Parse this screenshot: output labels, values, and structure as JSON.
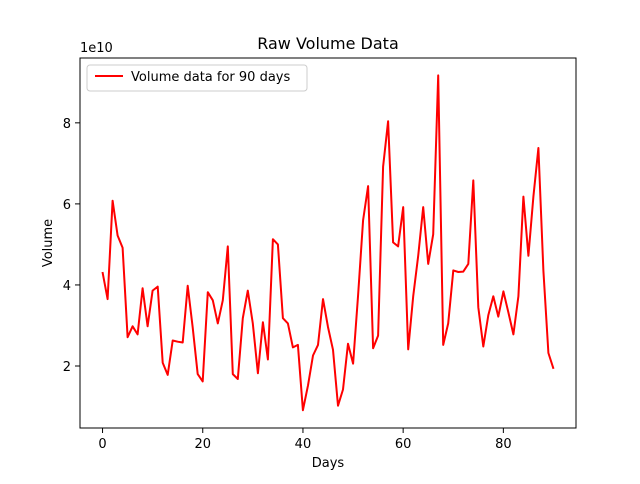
{
  "chart_data": {
    "type": "line",
    "title": "Raw Volume Data",
    "xlabel": "Days",
    "ylabel": "Volume",
    "y_offset_text": "1e10",
    "xlim": [
      -4.5,
      94.5
    ],
    "ylim": [
      0.47,
      9.6
    ],
    "x_ticks": [
      0,
      20,
      40,
      60,
      80
    ],
    "x_tick_labels": [
      "0",
      "20",
      "40",
      "60",
      "80"
    ],
    "y_ticks": [
      2,
      4,
      6,
      8
    ],
    "y_tick_labels": [
      "2",
      "4",
      "6",
      "8"
    ],
    "grid": false,
    "legend_position": "upper-left",
    "series": [
      {
        "name": "Volume data for 90 days",
        "color": "#ff0000",
        "x": [
          0,
          1,
          2,
          3,
          4,
          5,
          6,
          7,
          8,
          9,
          10,
          11,
          12,
          13,
          14,
          15,
          16,
          17,
          18,
          19,
          20,
          21,
          22,
          23,
          24,
          25,
          26,
          27,
          28,
          29,
          30,
          31,
          32,
          33,
          34,
          35,
          36,
          37,
          38,
          39,
          40,
          41,
          42,
          43,
          44,
          45,
          46,
          47,
          48,
          49,
          50,
          51,
          52,
          53,
          54,
          55,
          56,
          57,
          58,
          59,
          60,
          61,
          62,
          63,
          64,
          65,
          66,
          67,
          68,
          69,
          70,
          71,
          72,
          73,
          74,
          75,
          76,
          77,
          78,
          79,
          80,
          81,
          82,
          83,
          84,
          85,
          86,
          87,
          88,
          89,
          90
        ],
        "values": [
          4.32,
          3.65,
          6.08,
          5.22,
          4.92,
          2.71,
          2.98,
          2.78,
          3.92,
          2.98,
          3.86,
          3.96,
          2.08,
          1.78,
          2.63,
          2.6,
          2.58,
          3.98,
          2.95,
          1.8,
          1.62,
          3.82,
          3.62,
          3.05,
          3.62,
          4.95,
          1.8,
          1.68,
          3.18,
          3.86,
          3.05,
          1.82,
          3.08,
          2.16,
          5.13,
          5.0,
          3.18,
          3.05,
          2.46,
          2.52,
          0.91,
          1.52,
          2.26,
          2.52,
          3.65,
          2.96,
          2.4,
          1.02,
          1.42,
          2.55,
          2.06,
          3.75,
          5.6,
          6.44,
          2.44,
          2.75,
          6.92,
          8.04,
          5.05,
          4.95,
          5.92,
          2.41,
          3.72,
          4.72,
          5.92,
          4.52,
          5.25,
          9.17,
          2.52,
          3.05,
          4.36,
          4.32,
          4.33,
          4.52,
          6.58,
          3.45,
          2.48,
          3.25,
          3.72,
          3.22,
          3.84,
          3.32,
          2.78,
          3.72,
          6.18,
          4.72,
          6.18,
          7.38,
          4.35,
          2.32,
          1.93
        ]
      }
    ]
  }
}
